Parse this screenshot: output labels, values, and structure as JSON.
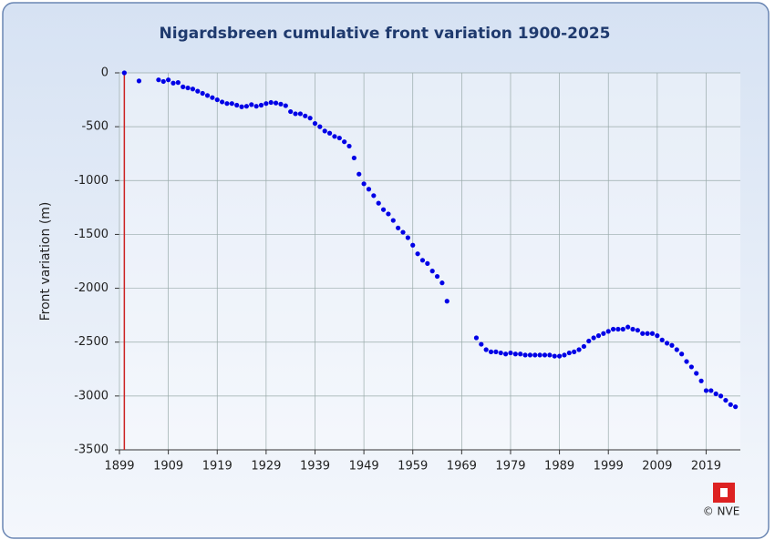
{
  "chart_data": {
    "type": "scatter",
    "title": "Nigardsbreen  cumulative front variation 1900-2025",
    "y_label": "Front variation (m)",
    "credit": "© NVE",
    "color": "#0000e6",
    "reference_line_color": "#cc2222",
    "grid": true,
    "x": [
      1900,
      1903,
      1907,
      1908,
      1909,
      1910,
      1911,
      1912,
      1913,
      1914,
      1915,
      1916,
      1917,
      1918,
      1919,
      1920,
      1921,
      1922,
      1923,
      1924,
      1925,
      1926,
      1927,
      1928,
      1929,
      1930,
      1931,
      1932,
      1933,
      1934,
      1935,
      1936,
      1937,
      1938,
      1939,
      1940,
      1941,
      1942,
      1943,
      1944,
      1945,
      1946,
      1947,
      1948,
      1949,
      1950,
      1951,
      1952,
      1953,
      1954,
      1955,
      1956,
      1957,
      1958,
      1959,
      1960,
      1961,
      1962,
      1963,
      1964,
      1965,
      1966,
      1972,
      1973,
      1974,
      1975,
      1976,
      1977,
      1978,
      1979,
      1980,
      1981,
      1982,
      1983,
      1984,
      1985,
      1986,
      1987,
      1988,
      1989,
      1990,
      1991,
      1992,
      1993,
      1994,
      1995,
      1996,
      1997,
      1998,
      1999,
      2000,
      2001,
      2002,
      2003,
      2004,
      2005,
      2006,
      2007,
      2008,
      2009,
      2010,
      2011,
      2012,
      2013,
      2014,
      2015,
      2016,
      2017,
      2018,
      2019,
      2020,
      2021,
      2022,
      2023,
      2024,
      2025
    ],
    "values": [
      0,
      -75,
      -65,
      -80,
      -65,
      -95,
      -90,
      -130,
      -140,
      -150,
      -170,
      -190,
      -210,
      -230,
      -250,
      -270,
      -285,
      -285,
      -300,
      -315,
      -310,
      -295,
      -310,
      -300,
      -285,
      -275,
      -280,
      -290,
      -305,
      -360,
      -380,
      -380,
      -400,
      -420,
      -470,
      -500,
      -540,
      -560,
      -590,
      -605,
      -640,
      -680,
      -790,
      -940,
      -1030,
      -1080,
      -1140,
      -1210,
      -1270,
      -1310,
      -1370,
      -1440,
      -1480,
      -1530,
      -1600,
      -1680,
      -1740,
      -1770,
      -1840,
      -1890,
      -1950,
      -2120,
      -2460,
      -2520,
      -2570,
      -2590,
      -2590,
      -2600,
      -2610,
      -2600,
      -2610,
      -2610,
      -2620,
      -2620,
      -2620,
      -2620,
      -2620,
      -2620,
      -2630,
      -2630,
      -2620,
      -2600,
      -2590,
      -2570,
      -2540,
      -2490,
      -2460,
      -2440,
      -2420,
      -2400,
      -2380,
      -2380,
      -2380,
      -2360,
      -2380,
      -2390,
      -2420,
      -2420,
      -2420,
      -2440,
      -2480,
      -2510,
      -2530,
      -2570,
      -2610,
      -2680,
      -2730,
      -2790,
      -2860,
      -2950,
      -2950,
      -2980,
      -3000,
      -3040,
      -3080,
      -3100
    ],
    "xlim": [
      1899,
      2026
    ],
    "xticks": [
      1899,
      1909,
      1919,
      1929,
      1939,
      1949,
      1959,
      1969,
      1979,
      1989,
      1999,
      2009,
      2019
    ],
    "ylim": [
      -3500,
      0
    ],
    "yticks": [
      0,
      -500,
      -1000,
      -1500,
      -2000,
      -2500,
      -3000,
      -3500
    ]
  }
}
